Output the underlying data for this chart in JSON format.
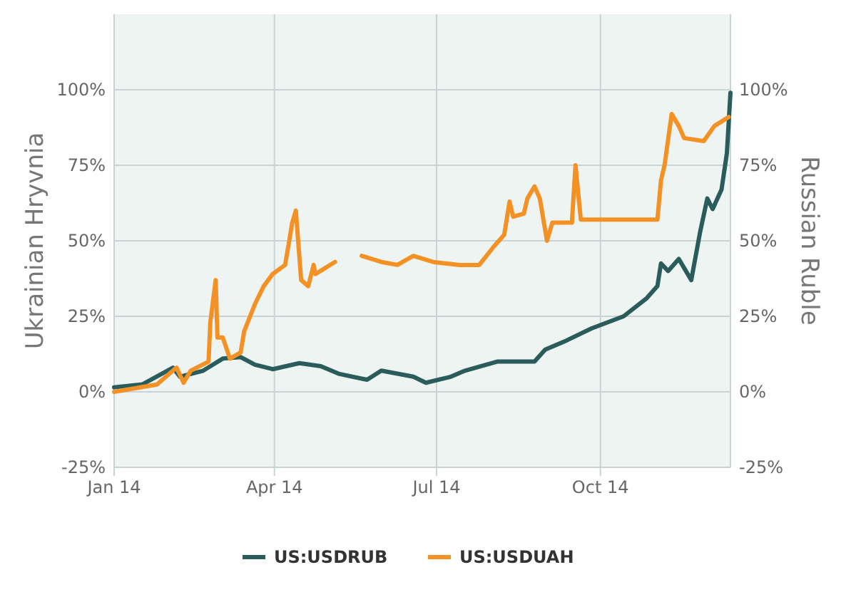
{
  "chart_data": {
    "type": "line",
    "ylabel": "Ukrainian Hryvnia",
    "y2label": "Russian Ruble",
    "xlim": [
      "2014-01-01",
      "2014-12-13"
    ],
    "xticks": [
      {
        "value": "2014-01-01",
        "label": "Jan 14"
      },
      {
        "value": "2014-04-01",
        "label": "Apr 14"
      },
      {
        "value": "2014-07-01",
        "label": "Jul 14"
      },
      {
        "value": "2014-10-01",
        "label": "Oct 14"
      }
    ],
    "ylim": [
      -25,
      125
    ],
    "yticks": [
      {
        "value": -25,
        "label": "-25%"
      },
      {
        "value": 0,
        "label": "0%"
      },
      {
        "value": 25,
        "label": "25%"
      },
      {
        "value": 50,
        "label": "50%"
      },
      {
        "value": 75,
        "label": "75%"
      },
      {
        "value": 100,
        "label": "100%"
      }
    ],
    "y2lim": [
      -25,
      125
    ],
    "y2ticks": [
      {
        "value": -25,
        "label": "-25%"
      },
      {
        "value": 0,
        "label": "0%"
      },
      {
        "value": 25,
        "label": "25%"
      },
      {
        "value": 50,
        "label": "50%"
      },
      {
        "value": 75,
        "label": "75%"
      },
      {
        "value": 100,
        "label": "100%"
      }
    ],
    "grid": true,
    "legend": "bottom",
    "series": [
      {
        "name": "US:USDRUB",
        "color": "#2a5c5c",
        "x": [
          "2014-01-01",
          "2014-01-17",
          "2014-02-03",
          "2014-02-07",
          "2014-02-20",
          "2014-03-03",
          "2014-03-13",
          "2014-03-21",
          "2014-03-31",
          "2014-04-15",
          "2014-04-27",
          "2014-05-07",
          "2014-05-23",
          "2014-05-31",
          "2014-06-18",
          "2014-06-25",
          "2014-07-09",
          "2014-07-17",
          "2014-08-04",
          "2014-08-25",
          "2014-08-31",
          "2014-09-12",
          "2014-09-26",
          "2014-10-14",
          "2014-10-27",
          "2014-11-02",
          "2014-11-04",
          "2014-11-08",
          "2014-11-14",
          "2014-11-21",
          "2014-11-26",
          "2014-11-30",
          "2014-12-03",
          "2014-12-08",
          "2014-12-11",
          "2014-12-13"
        ],
        "values": [
          1.5,
          2.5,
          8,
          5,
          7,
          11,
          11.5,
          9,
          7.5,
          9.5,
          8.5,
          6,
          4,
          7,
          5,
          3,
          5,
          7,
          10,
          10,
          14,
          17,
          21,
          25,
          31,
          35,
          42.5,
          40,
          44,
          37,
          53,
          64,
          60.5,
          67,
          79,
          99
        ]
      },
      {
        "name": "US:USDUAH",
        "color": "#f39125",
        "x": [
          "2014-01-01",
          "2014-01-25",
          "2014-02-05",
          "2014-02-09",
          "2014-02-13",
          "2014-02-23",
          "2014-02-24",
          "2014-02-27",
          "2014-02-28",
          "2014-03-03",
          "2014-03-07",
          "2014-03-13",
          "2014-03-15",
          "2014-03-21",
          "2014-03-26",
          "2014-03-31",
          "2014-04-07",
          "2014-04-11",
          "2014-04-13",
          "2014-04-16",
          "2014-04-20",
          "2014-04-23",
          "2014-04-24",
          "2014-05-05",
          "2014-05-12",
          "2014-05-20",
          "2014-05-31",
          "2014-06-09",
          "2014-06-18",
          "2014-06-29",
          "2014-07-14",
          "2014-07-25",
          "2014-08-02",
          "2014-08-08",
          "2014-08-11",
          "2014-08-13",
          "2014-08-19",
          "2014-08-21",
          "2014-08-25",
          "2014-08-28",
          "2014-09-01",
          "2014-09-04",
          "2014-09-15",
          "2014-09-17",
          "2014-09-20",
          "2014-10-09",
          "2014-11-02",
          "2014-11-04",
          "2014-11-06",
          "2014-11-10",
          "2014-11-14",
          "2014-11-17",
          "2014-11-28",
          "2014-12-04",
          "2014-12-12"
        ],
        "values": [
          0,
          2.4,
          8,
          3,
          7,
          10,
          23,
          37,
          18,
          18,
          11,
          13,
          20,
          29,
          35,
          39,
          42,
          56,
          60,
          37,
          35,
          42,
          39,
          43,
          null,
          45,
          43,
          42,
          45,
          43,
          42,
          42,
          48,
          52,
          63,
          58,
          59,
          64,
          68,
          64,
          50,
          56,
          56,
          75,
          57,
          57,
          57,
          70,
          75,
          92,
          88,
          84,
          83,
          88,
          91
        ]
      }
    ]
  }
}
